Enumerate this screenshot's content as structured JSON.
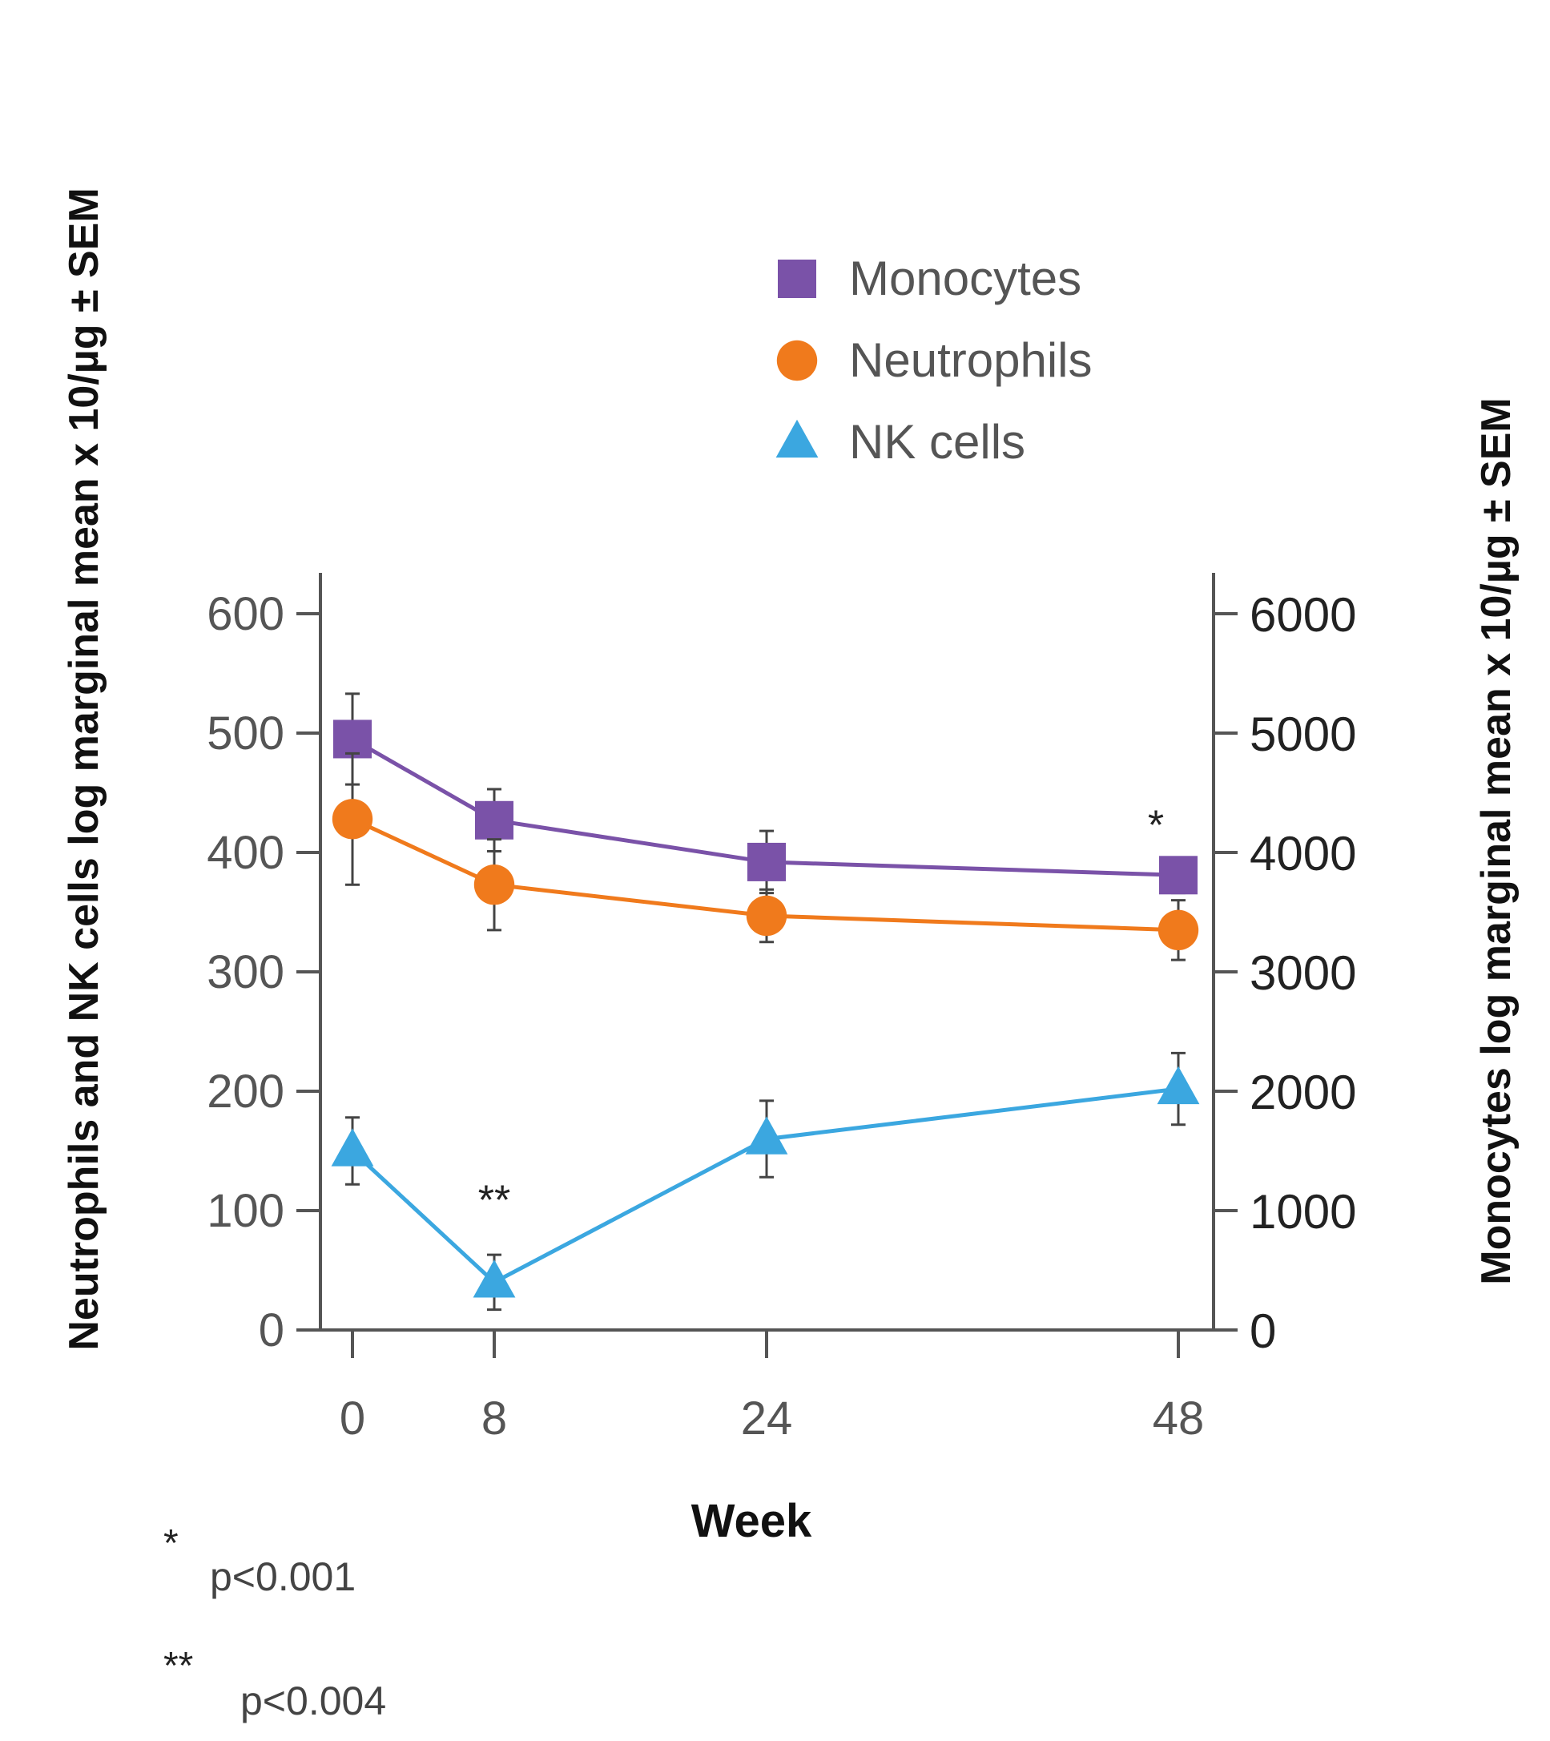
{
  "chart_data": {
    "type": "line",
    "xlabel": "Week",
    "ylabel_left": "Neutrophils  and NK cells log marginal mean x 10/µg ± SEM",
    "ylabel_right": "Monocytes log marginal mean x 10/µg ± SEM",
    "x": [
      0,
      8,
      24,
      48
    ],
    "x_ticks": [
      "0",
      "8",
      "24",
      "48"
    ],
    "ylim_left": [
      0,
      600
    ],
    "ylim_right": [
      0,
      6000
    ],
    "y_ticks_left": [
      "0",
      "100",
      "200",
      "300",
      "400",
      "500",
      "600"
    ],
    "y_ticks_right": [
      "0",
      "1000",
      "2000",
      "3000",
      "4000",
      "5000",
      "6000"
    ],
    "grid": false,
    "legend_position": "top-right",
    "series": [
      {
        "name": "Monocytes",
        "axis": "right",
        "marker": "square",
        "color": "#7a52a8",
        "values": [
          4950,
          4270,
          3920,
          3810
        ],
        "err": [
          380,
          260,
          260,
          150
        ]
      },
      {
        "name": "Neutrophils",
        "axis": "left",
        "marker": "circle",
        "color": "#f07a1c",
        "values": [
          428,
          373,
          347,
          335
        ],
        "err": [
          55,
          38,
          22,
          25
        ]
      },
      {
        "name": "NK cells",
        "axis": "left",
        "marker": "triangle",
        "color": "#3ba7e0",
        "values": [
          150,
          40,
          160,
          202
        ],
        "err": [
          28,
          23,
          32,
          30
        ]
      }
    ],
    "annotations": [
      {
        "text": "*",
        "series": "Monocytes",
        "x": 48
      },
      {
        "text": "**",
        "series": "NK cells",
        "x": 8
      }
    ]
  },
  "footnotes": [
    {
      "mark": "*",
      "text": "p<0.001"
    },
    {
      "mark": "**",
      "text": "p<0.004"
    }
  ]
}
